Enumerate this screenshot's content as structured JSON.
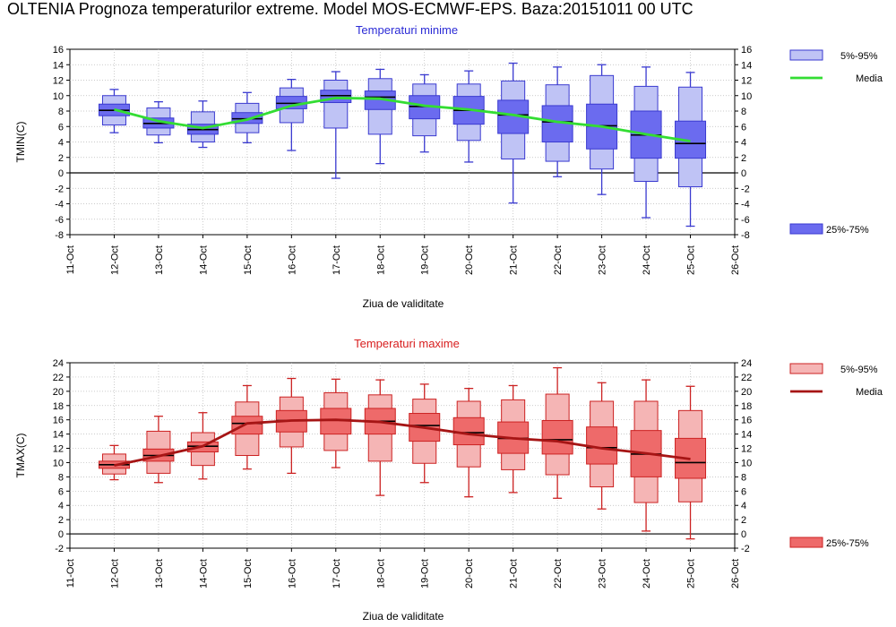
{
  "page": {
    "title": "OLTENIA  Prognoza temperaturilor extreme.  Model MOS-ECMWF-EPS. Baza:20151011 00 UTC"
  },
  "chart_data": [
    {
      "type": "box",
      "title": "Temperaturi minime",
      "title_color": "#2b2bd6",
      "ylabel": "TMIN(C)",
      "xlabel": "Ziua de validitate",
      "ylim": [
        -8,
        16
      ],
      "yticks": [
        -8,
        -6,
        -4,
        -2,
        0,
        2,
        4,
        6,
        8,
        10,
        12,
        14,
        16
      ],
      "x_ticks": [
        "11-Oct",
        "12-Oct",
        "13-Oct",
        "14-Oct",
        "15-Oct",
        "16-Oct",
        "17-Oct",
        "18-Oct",
        "19-Oct",
        "20-Oct",
        "21-Oct",
        "22-Oct",
        "23-Oct",
        "24-Oct",
        "25-Oct",
        "26-Oct"
      ],
      "grid": true,
      "colors": {
        "outer": "#bfc3f5",
        "inner": "#6b6bef",
        "edge": "#3a3ad0",
        "mean": "#33dd33"
      },
      "legend": [
        {
          "label": "5%-95%",
          "style": "outer"
        },
        {
          "label": "Media",
          "style": "line"
        },
        {
          "label": "25%-75%",
          "style": "inner"
        }
      ],
      "boxes": [
        {
          "x": "12-Oct",
          "whisker_low": 5.2,
          "p5": 6.2,
          "p25": 7.4,
          "median": 8.1,
          "p75": 8.9,
          "p95": 10.0,
          "whisker_high": 10.8
        },
        {
          "x": "13-Oct",
          "whisker_low": 3.9,
          "p5": 4.9,
          "p25": 5.8,
          "median": 6.4,
          "p75": 7.1,
          "p95": 8.4,
          "whisker_high": 9.2
        },
        {
          "x": "14-Oct",
          "whisker_low": 3.3,
          "p5": 4.0,
          "p25": 5.0,
          "median": 5.6,
          "p75": 6.3,
          "p95": 7.9,
          "whisker_high": 9.3
        },
        {
          "x": "15-Oct",
          "whisker_low": 3.9,
          "p5": 5.2,
          "p25": 6.4,
          "median": 7.0,
          "p75": 7.8,
          "p95": 9.0,
          "whisker_high": 10.4
        },
        {
          "x": "16-Oct",
          "whisker_low": 2.9,
          "p5": 6.5,
          "p25": 8.3,
          "median": 9.0,
          "p75": 9.9,
          "p95": 11.0,
          "whisker_high": 12.1
        },
        {
          "x": "17-Oct",
          "whisker_low": -0.7,
          "p5": 5.8,
          "p25": 9.1,
          "median": 10.0,
          "p75": 10.7,
          "p95": 12.0,
          "whisker_high": 13.1
        },
        {
          "x": "18-Oct",
          "whisker_low": 1.2,
          "p5": 5.0,
          "p25": 8.2,
          "median": 9.8,
          "p75": 10.6,
          "p95": 12.2,
          "whisker_high": 13.4
        },
        {
          "x": "19-Oct",
          "whisker_low": 2.7,
          "p5": 4.8,
          "p25": 7.0,
          "median": 8.6,
          "p75": 10.0,
          "p95": 11.5,
          "whisker_high": 12.7
        },
        {
          "x": "20-Oct",
          "whisker_low": 1.4,
          "p5": 4.2,
          "p25": 6.3,
          "median": 8.1,
          "p75": 9.9,
          "p95": 11.5,
          "whisker_high": 13.2
        },
        {
          "x": "21-Oct",
          "whisker_low": -3.9,
          "p5": 1.8,
          "p25": 5.1,
          "median": 7.5,
          "p75": 9.4,
          "p95": 11.9,
          "whisker_high": 14.2
        },
        {
          "x": "22-Oct",
          "whisker_low": -0.5,
          "p5": 1.5,
          "p25": 4.0,
          "median": 6.6,
          "p75": 8.7,
          "p95": 11.4,
          "whisker_high": 13.7
        },
        {
          "x": "23-Oct",
          "whisker_low": -2.8,
          "p5": 0.5,
          "p25": 3.1,
          "median": 6.1,
          "p75": 8.9,
          "p95": 12.6,
          "whisker_high": 14.0
        },
        {
          "x": "24-Oct",
          "whisker_low": -5.8,
          "p5": -1.1,
          "p25": 1.9,
          "median": 4.9,
          "p75": 8.0,
          "p95": 11.2,
          "whisker_high": 13.7
        },
        {
          "x": "25-Oct",
          "whisker_low": -6.9,
          "p5": -1.8,
          "p25": 1.9,
          "median": 3.8,
          "p75": 6.7,
          "p95": 11.1,
          "whisker_high": 13.0
        }
      ],
      "mean": [
        8.2,
        6.7,
        5.8,
        6.9,
        8.7,
        9.7,
        9.6,
        8.7,
        8.2,
        7.5,
        6.6,
        6.0,
        5.0,
        4.1
      ]
    },
    {
      "type": "box",
      "title": "Temperaturi maxime",
      "title_color": "#d81e1e",
      "ylabel": "TMAX(C)",
      "xlabel": "Ziua de validitate",
      "ylim": [
        -2,
        24
      ],
      "yticks": [
        -2,
        0,
        2,
        4,
        6,
        8,
        10,
        12,
        14,
        16,
        18,
        20,
        22,
        24
      ],
      "x_ticks": [
        "11-Oct",
        "12-Oct",
        "13-Oct",
        "14-Oct",
        "15-Oct",
        "16-Oct",
        "17-Oct",
        "18-Oct",
        "19-Oct",
        "20-Oct",
        "21-Oct",
        "22-Oct",
        "23-Oct",
        "24-Oct",
        "25-Oct",
        "26-Oct"
      ],
      "grid": true,
      "colors": {
        "outer": "#f5b5b5",
        "inner": "#ee6a6a",
        "edge": "#cc2222",
        "mean": "#a61515"
      },
      "legend": [
        {
          "label": "5%-95%",
          "style": "outer"
        },
        {
          "label": "Media",
          "style": "line"
        },
        {
          "label": "25%-75%",
          "style": "inner"
        }
      ],
      "boxes": [
        {
          "x": "12-Oct",
          "whisker_low": 7.6,
          "p5": 8.4,
          "p25": 9.2,
          "median": 9.7,
          "p75": 10.2,
          "p95": 11.2,
          "whisker_high": 12.4
        },
        {
          "x": "13-Oct",
          "whisker_low": 7.2,
          "p5": 8.5,
          "p25": 10.2,
          "median": 11.0,
          "p75": 11.9,
          "p95": 14.4,
          "whisker_high": 16.5
        },
        {
          "x": "14-Oct",
          "whisker_low": 7.7,
          "p5": 9.6,
          "p25": 11.5,
          "median": 12.3,
          "p75": 12.9,
          "p95": 14.2,
          "whisker_high": 17.0
        },
        {
          "x": "15-Oct",
          "whisker_low": 9.1,
          "p5": 11.0,
          "p25": 14.0,
          "median": 15.5,
          "p75": 16.5,
          "p95": 18.5,
          "whisker_high": 20.8
        },
        {
          "x": "16-Oct",
          "whisker_low": 8.5,
          "p5": 12.2,
          "p25": 14.3,
          "median": 15.9,
          "p75": 17.3,
          "p95": 19.2,
          "whisker_high": 21.8
        },
        {
          "x": "17-Oct",
          "whisker_low": 9.3,
          "p5": 11.7,
          "p25": 14.0,
          "median": 16.0,
          "p75": 17.6,
          "p95": 19.8,
          "whisker_high": 21.7
        },
        {
          "x": "18-Oct",
          "whisker_low": 5.4,
          "p5": 10.2,
          "p25": 14.0,
          "median": 15.8,
          "p75": 17.6,
          "p95": 19.5,
          "whisker_high": 21.6
        },
        {
          "x": "19-Oct",
          "whisker_low": 7.2,
          "p5": 9.9,
          "p25": 13.0,
          "median": 15.2,
          "p75": 16.9,
          "p95": 18.9,
          "whisker_high": 21.0
        },
        {
          "x": "20-Oct",
          "whisker_low": 5.2,
          "p5": 9.4,
          "p25": 12.5,
          "median": 14.2,
          "p75": 16.3,
          "p95": 18.6,
          "whisker_high": 20.4
        },
        {
          "x": "21-Oct",
          "whisker_low": 5.8,
          "p5": 9.0,
          "p25": 11.3,
          "median": 13.4,
          "p75": 15.7,
          "p95": 18.8,
          "whisker_high": 20.8
        },
        {
          "x": "22-Oct",
          "whisker_low": 5.0,
          "p5": 8.3,
          "p25": 11.2,
          "median": 13.2,
          "p75": 15.9,
          "p95": 19.6,
          "whisker_high": 23.3
        },
        {
          "x": "23-Oct",
          "whisker_low": 3.5,
          "p5": 6.6,
          "p25": 9.8,
          "median": 12.1,
          "p75": 15.0,
          "p95": 18.6,
          "whisker_high": 21.2
        },
        {
          "x": "24-Oct",
          "whisker_low": 0.4,
          "p5": 4.4,
          "p25": 8.0,
          "median": 11.2,
          "p75": 14.5,
          "p95": 18.6,
          "whisker_high": 21.6
        },
        {
          "x": "25-Oct",
          "whisker_low": -0.7,
          "p5": 4.5,
          "p25": 7.8,
          "median": 10.0,
          "p75": 13.4,
          "p95": 17.3,
          "whisker_high": 20.7
        }
      ],
      "mean": [
        9.6,
        10.9,
        12.3,
        15.5,
        15.9,
        16.0,
        15.7,
        14.9,
        14.0,
        13.4,
        13.0,
        12.0,
        11.3,
        10.5
      ]
    }
  ]
}
